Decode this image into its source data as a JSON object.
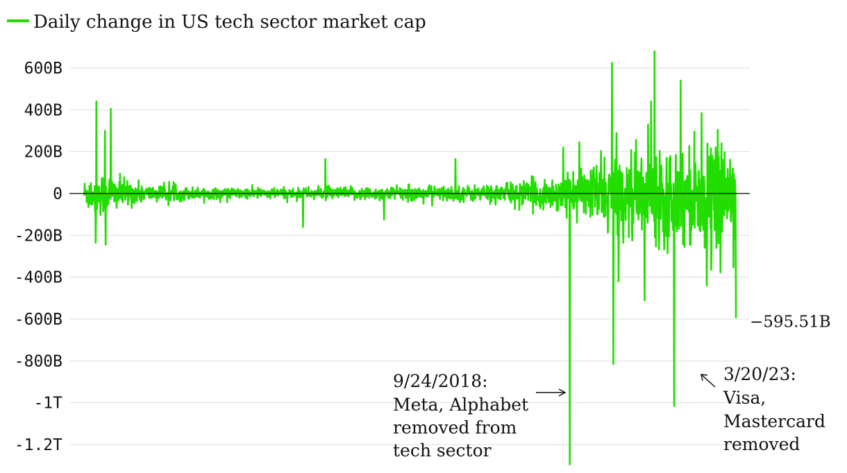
{
  "chart_data": {
    "type": "line",
    "title": "",
    "xlabel": "",
    "ylabel": "",
    "grid": true,
    "legend": {
      "placement": "top-left",
      "entries": [
        "Daily change in US tech sector market cap"
      ]
    },
    "ylim": [
      -1300,
      720
    ],
    "y_unit": "billions USD",
    "yticks": [
      {
        "value": 600,
        "label": "600B"
      },
      {
        "value": 400,
        "label": "400B"
      },
      {
        "value": 200,
        "label": "200B"
      },
      {
        "value": 0,
        "label": "0"
      },
      {
        "value": -200,
        "label": "-200B"
      },
      {
        "value": -400,
        "label": "-400B"
      },
      {
        "value": -600,
        "label": "-600B"
      },
      {
        "value": -800,
        "label": "-800B"
      },
      {
        "value": -1000,
        "label": "-1T"
      },
      {
        "value": -1200,
        "label": "-1.2T"
      }
    ],
    "series": [
      {
        "name": "Daily change in US tech sector market cap",
        "color": "#22dd00",
        "noise_envelope": [
          {
            "t": 0.0,
            "amp": 80
          },
          {
            "t": 0.02,
            "amp": 130
          },
          {
            "t": 0.06,
            "amp": 80
          },
          {
            "t": 0.1,
            "amp": 45
          },
          {
            "t": 0.2,
            "amp": 30
          },
          {
            "t": 0.3,
            "amp": 30
          },
          {
            "t": 0.4,
            "amp": 35
          },
          {
            "t": 0.5,
            "amp": 40
          },
          {
            "t": 0.6,
            "amp": 45
          },
          {
            "t": 0.66,
            "amp": 60
          },
          {
            "t": 0.72,
            "amp": 95
          },
          {
            "t": 0.76,
            "amp": 100
          },
          {
            "t": 0.79,
            "amp": 200
          },
          {
            "t": 0.86,
            "amp": 230
          },
          {
            "t": 0.91,
            "amp": 270
          },
          {
            "t": 1.0,
            "amp": 280
          }
        ],
        "spikes": [
          {
            "t": 0.019,
            "v": 440
          },
          {
            "t": 0.041,
            "v": 405
          },
          {
            "t": 0.032,
            "v": 300
          },
          {
            "t": 0.018,
            "v": -235
          },
          {
            "t": 0.033,
            "v": -245
          },
          {
            "t": 0.37,
            "v": 165
          },
          {
            "t": 0.57,
            "v": 165
          },
          {
            "t": 0.336,
            "v": -160
          },
          {
            "t": 0.46,
            "v": -125
          },
          {
            "t": 0.745,
            "v": -1295
          },
          {
            "t": 0.735,
            "v": 220
          },
          {
            "t": 0.76,
            "v": 245
          },
          {
            "t": 0.81,
            "v": 625
          },
          {
            "t": 0.812,
            "v": -815
          },
          {
            "t": 0.82,
            "v": -420
          },
          {
            "t": 0.865,
            "v": 330
          },
          {
            "t": 0.875,
            "v": 680
          },
          {
            "t": 0.87,
            "v": 440
          },
          {
            "t": 0.905,
            "v": -1015
          },
          {
            "t": 0.915,
            "v": 540
          },
          {
            "t": 0.86,
            "v": -510
          },
          {
            "t": 0.955,
            "v": -440
          },
          {
            "t": 1.0,
            "v": -595.51
          }
        ],
        "last_value": -595.51
      }
    ],
    "end_label": "−595.51B",
    "annotations": [
      {
        "text": [
          "9/24/2018:",
          "Meta, Alphabet",
          "removed from",
          "tech sector"
        ]
      },
      {
        "text": [
          "3/20/23:",
          "Visa,",
          "Mastercard",
          "removed"
        ]
      }
    ]
  }
}
